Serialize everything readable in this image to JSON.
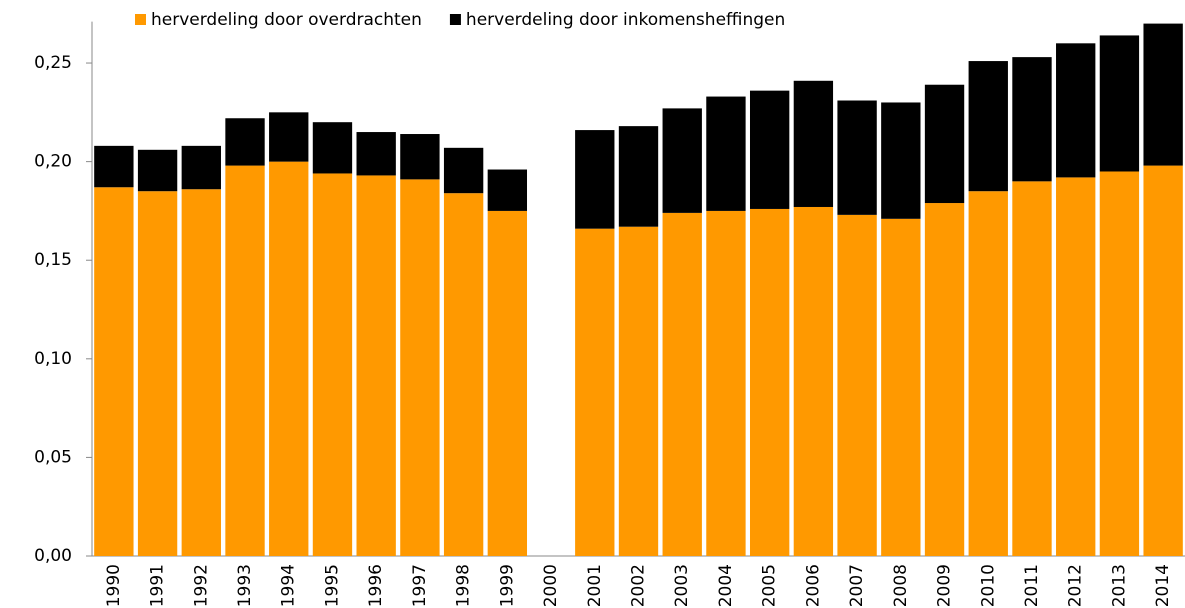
{
  "chart_data": {
    "type": "bar",
    "stacked": true,
    "categories": [
      "1990",
      "1991",
      "1992",
      "1993",
      "1994",
      "1995",
      "1996",
      "1997",
      "1998",
      "1999",
      "2000",
      "2001",
      "2002",
      "2003",
      "2004",
      "2005",
      "2006",
      "2007",
      "2008",
      "2009",
      "2010",
      "2011",
      "2012",
      "2013",
      "2014"
    ],
    "series": [
      {
        "name": "herverdeling door overdrachten",
        "color": "#ff9900",
        "values": [
          0.187,
          0.185,
          0.186,
          0.198,
          0.2,
          0.194,
          0.193,
          0.191,
          0.184,
          0.175,
          null,
          0.166,
          0.167,
          0.174,
          0.175,
          0.176,
          0.177,
          0.173,
          0.171,
          0.179,
          0.185,
          0.19,
          0.192,
          0.195,
          0.198
        ]
      },
      {
        "name": "herverdeling door inkomensheffingen",
        "color": "#000000",
        "values": [
          0.021,
          0.021,
          0.022,
          0.024,
          0.025,
          0.026,
          0.022,
          0.023,
          0.023,
          0.021,
          null,
          0.05,
          0.051,
          0.053,
          0.058,
          0.06,
          0.064,
          0.058,
          0.059,
          0.06,
          0.066,
          0.063,
          0.068,
          0.069,
          0.072
        ]
      }
    ],
    "ylim": [
      0,
      0.27
    ],
    "yticks": [
      {
        "value": 0,
        "label": "0,00"
      },
      {
        "value": 0.05,
        "label": "0,05"
      },
      {
        "value": 0.1,
        "label": "0,10"
      },
      {
        "value": 0.15,
        "label": "0,15"
      },
      {
        "value": 0.2,
        "label": "0,20"
      },
      {
        "value": 0.25,
        "label": "0,25"
      }
    ],
    "legend": "top"
  }
}
